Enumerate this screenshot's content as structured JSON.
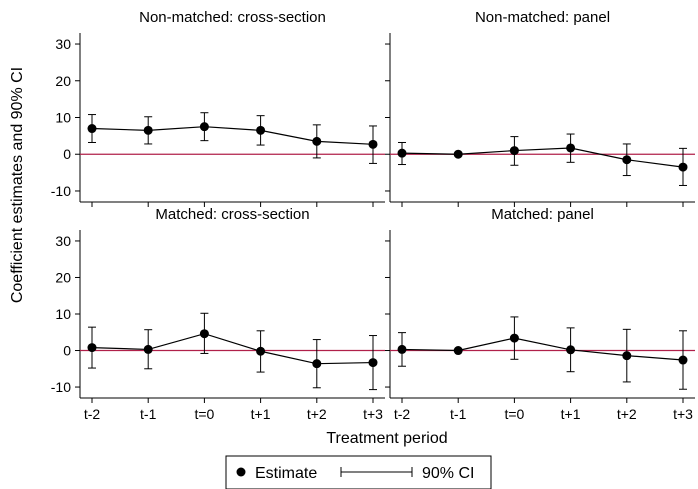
{
  "y_axis_label": "Coefficient estimates and 90% CI",
  "x_axis_label": "Treatment period",
  "legend": {
    "estimate_label": "Estimate",
    "ci_label": "90% CI"
  },
  "colors": {
    "zero_line": "#b0204a",
    "marker": "#000000",
    "frame": "#000000"
  },
  "chart_data": {
    "type": "scatter",
    "layout": "2x2 panels",
    "categories": [
      "t-2",
      "t-1",
      "t=0",
      "t+1",
      "t+2",
      "t+3"
    ],
    "ylim": [
      -13,
      33
    ],
    "yticks": [
      -10,
      0,
      10,
      20,
      30
    ],
    "reference_line": 0,
    "grid": false,
    "legend_position": "bottom",
    "panels": [
      {
        "title": "Non-matched: cross-section",
        "estimates": [
          7.0,
          6.5,
          7.5,
          6.5,
          3.5,
          2.7
        ],
        "ci_low": [
          3.2,
          2.8,
          3.7,
          2.5,
          -1.0,
          -2.5
        ],
        "ci_high": [
          10.8,
          10.2,
          11.3,
          10.5,
          8.0,
          7.7
        ]
      },
      {
        "title": "Non-matched: panel",
        "estimates": [
          0.3,
          0.0,
          1.0,
          1.7,
          -1.5,
          -3.5
        ],
        "ci_low": [
          -2.8,
          0.0,
          -3.0,
          -2.2,
          -5.8,
          -8.5
        ],
        "ci_high": [
          3.2,
          0.0,
          4.8,
          5.5,
          2.8,
          1.6
        ]
      },
      {
        "title": "Matched: cross-section",
        "estimates": [
          0.8,
          0.3,
          4.6,
          -0.2,
          -3.6,
          -3.3
        ],
        "ci_low": [
          -4.8,
          -5.0,
          -0.8,
          -5.9,
          -10.2,
          -10.7
        ],
        "ci_high": [
          6.4,
          5.7,
          10.2,
          5.4,
          3.0,
          4.1
        ]
      },
      {
        "title": "Matched: panel",
        "estimates": [
          0.3,
          0.0,
          3.4,
          0.2,
          -1.4,
          -2.6
        ],
        "ci_low": [
          -4.3,
          0.0,
          -2.4,
          -5.8,
          -8.6,
          -10.6
        ],
        "ci_high": [
          4.9,
          0.0,
          9.2,
          6.2,
          5.8,
          5.4
        ]
      }
    ]
  }
}
